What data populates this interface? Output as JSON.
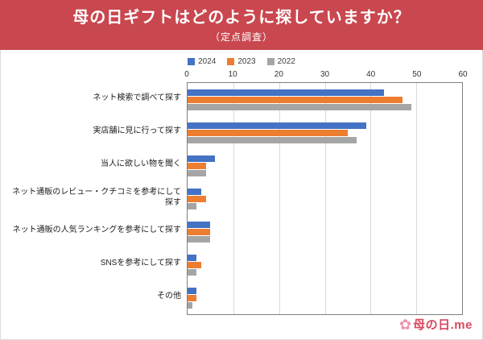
{
  "header": {
    "title": "母の日ギフトはどのように探していますか？",
    "subtitle": "（定点調査）"
  },
  "chart_data": {
    "type": "bar",
    "orientation": "horizontal",
    "title": "母の日ギフトはどのように探していますか？（定点調査）",
    "categories": [
      "ネット検索で調べて探す",
      "実店舗に見に行って探す",
      "当人に欲しい物を聞く",
      "ネット通販のレビュー・クチコミを参考にして探す",
      "ネット通販の人気ランキングを参考にして探す",
      "SNSを参考にして探す",
      "その他"
    ],
    "series": [
      {
        "name": "2024",
        "color": "#4472c4",
        "values": [
          43,
          39,
          6,
          3,
          5,
          2,
          2
        ]
      },
      {
        "name": "2023",
        "color": "#ed7d31",
        "values": [
          47,
          35,
          4,
          4,
          5,
          3,
          2
        ]
      },
      {
        "name": "2022",
        "color": "#a5a5a5",
        "values": [
          49,
          37,
          4,
          2,
          5,
          2,
          1
        ]
      }
    ],
    "xlim": [
      0,
      60
    ],
    "xticks": [
      0,
      10,
      20,
      30,
      40,
      50,
      60
    ],
    "grid": true,
    "legend_position": "top"
  },
  "logo": {
    "flower": "✿",
    "text": "母の日.me"
  },
  "colors": {
    "banner": "#c9474f",
    "plot_border": "#7f7f7f",
    "gridline": "#d9d9d9"
  }
}
